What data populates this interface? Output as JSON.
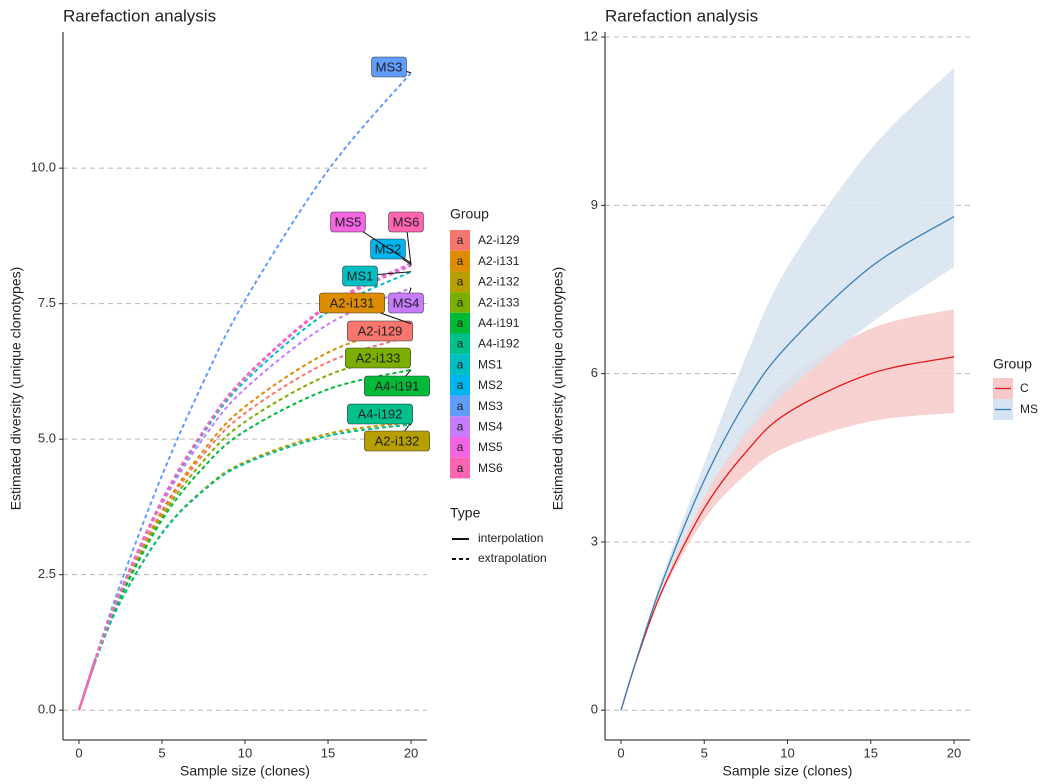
{
  "chart_data": [
    {
      "type": "line",
      "title": "Rarefaction analysis",
      "x_label": "Sample size (clones)",
      "y_label": "Estimated diversity (unique clonotypes)",
      "x": [
        0,
        1,
        2.5,
        5,
        7.5,
        10,
        15,
        20
      ],
      "xlim": [
        -0.96,
        20.96
      ],
      "xticks": [
        0,
        5,
        10,
        15,
        20
      ],
      "ylim": [
        -0.55,
        12.42
      ],
      "yticks": [
        {
          "value": 0,
          "label": "0.0"
        },
        {
          "value": 2.5,
          "label": "2.5"
        },
        {
          "value": 5,
          "label": "5.0"
        },
        {
          "value": 7.5,
          "label": "7.5"
        },
        {
          "value": 10,
          "label": "10.0"
        }
      ],
      "grid": true,
      "legend_title": "Group",
      "legend_glyph": "a",
      "linetype_legend": {
        "title": "Type",
        "items": [
          "interpolation",
          "extrapolation"
        ]
      },
      "series": [
        {
          "name": "A2-i129",
          "color": "#F8766D",
          "values": [
            0,
            0.93,
            2.12,
            3.63,
            4.72,
            5.48,
            6.42,
            6.9
          ]
        },
        {
          "name": "A2-i131",
          "color": "#DE8C00",
          "values": [
            0,
            0.94,
            2.14,
            3.68,
            4.79,
            5.6,
            6.6,
            7.13
          ]
        },
        {
          "name": "A2-i132",
          "color": "#B79F00",
          "values": [
            0,
            0.92,
            2.01,
            3.27,
            4.07,
            4.58,
            5.1,
            5.31
          ]
        },
        {
          "name": "A2-i133",
          "color": "#7CAE00",
          "values": [
            0,
            0.93,
            2.1,
            3.57,
            4.6,
            5.32,
            6.18,
            6.6
          ]
        },
        {
          "name": "A4-i191",
          "color": "#00BA38",
          "values": [
            0,
            0.93,
            2.08,
            3.51,
            4.48,
            5.15,
            5.92,
            6.28
          ]
        },
        {
          "name": "A4-i192",
          "color": "#00C08B",
          "values": [
            0,
            0.91,
            2.0,
            3.26,
            4.05,
            4.55,
            5.06,
            5.27
          ]
        },
        {
          "name": "MS1",
          "color": "#00BFC4",
          "values": [
            0,
            0.95,
            2.19,
            3.85,
            5.11,
            6.07,
            7.35,
            8.09
          ]
        },
        {
          "name": "MS2",
          "color": "#00B4F0",
          "values": [
            0,
            0.95,
            2.2,
            3.87,
            5.15,
            6.13,
            7.45,
            8.22
          ]
        },
        {
          "name": "MS3",
          "color": "#619CFF",
          "values": [
            0,
            0.97,
            2.33,
            4.33,
            6.06,
            7.56,
            9.96,
            11.76
          ]
        },
        {
          "name": "MS4",
          "color": "#C77CFF",
          "values": [
            0,
            0.94,
            2.17,
            3.8,
            5.02,
            5.93,
            7.12,
            7.79
          ]
        },
        {
          "name": "MS5",
          "color": "#F564E3",
          "values": [
            0,
            0.95,
            2.2,
            3.88,
            5.16,
            6.15,
            7.48,
            8.25
          ]
        },
        {
          "name": "MS6",
          "color": "#FF64B0",
          "values": [
            0,
            0.95,
            2.2,
            3.87,
            5.15,
            6.13,
            7.45,
            8.2
          ]
        }
      ]
    },
    {
      "type": "ribbon",
      "title": "Rarefaction analysis",
      "x_label": "Sample size (clones)",
      "y_label": "Estimated diversity (unique clonotypes)",
      "x": [
        0,
        1,
        2.5,
        5,
        7.5,
        10,
        15,
        20
      ],
      "xlim": [
        -0.96,
        20.96
      ],
      "xticks": [
        0,
        5,
        10,
        15,
        20
      ],
      "ylim": [
        -0.53,
        12.0
      ],
      "yticks": [
        0,
        3,
        6,
        9,
        12
      ],
      "grid": true,
      "legend_title": "Group",
      "series": [
        {
          "name": "C",
          "color": "#E41A1C",
          "fill": "#F7C9C9",
          "values": [
            0,
            0.95,
            2.15,
            3.6,
            4.6,
            5.3,
            6.0,
            6.3
          ],
          "lower": [
            0,
            0.95,
            2.1,
            3.4,
            4.2,
            4.7,
            5.15,
            5.3
          ],
          "upper": [
            0,
            0.95,
            2.2,
            3.8,
            5.0,
            5.9,
            6.8,
            7.15
          ]
        },
        {
          "name": "MS",
          "color": "#377EB8",
          "fill": "#D6E3F0",
          "values": [
            0,
            0.97,
            2.3,
            4.1,
            5.5,
            6.5,
            7.9,
            8.8
          ],
          "lower": [
            0,
            0.97,
            2.2,
            3.8,
            4.9,
            5.7,
            6.9,
            7.9
          ],
          "upper": [
            0,
            0.97,
            2.4,
            4.4,
            6.3,
            7.9,
            10.0,
            11.45
          ]
        }
      ]
    }
  ]
}
